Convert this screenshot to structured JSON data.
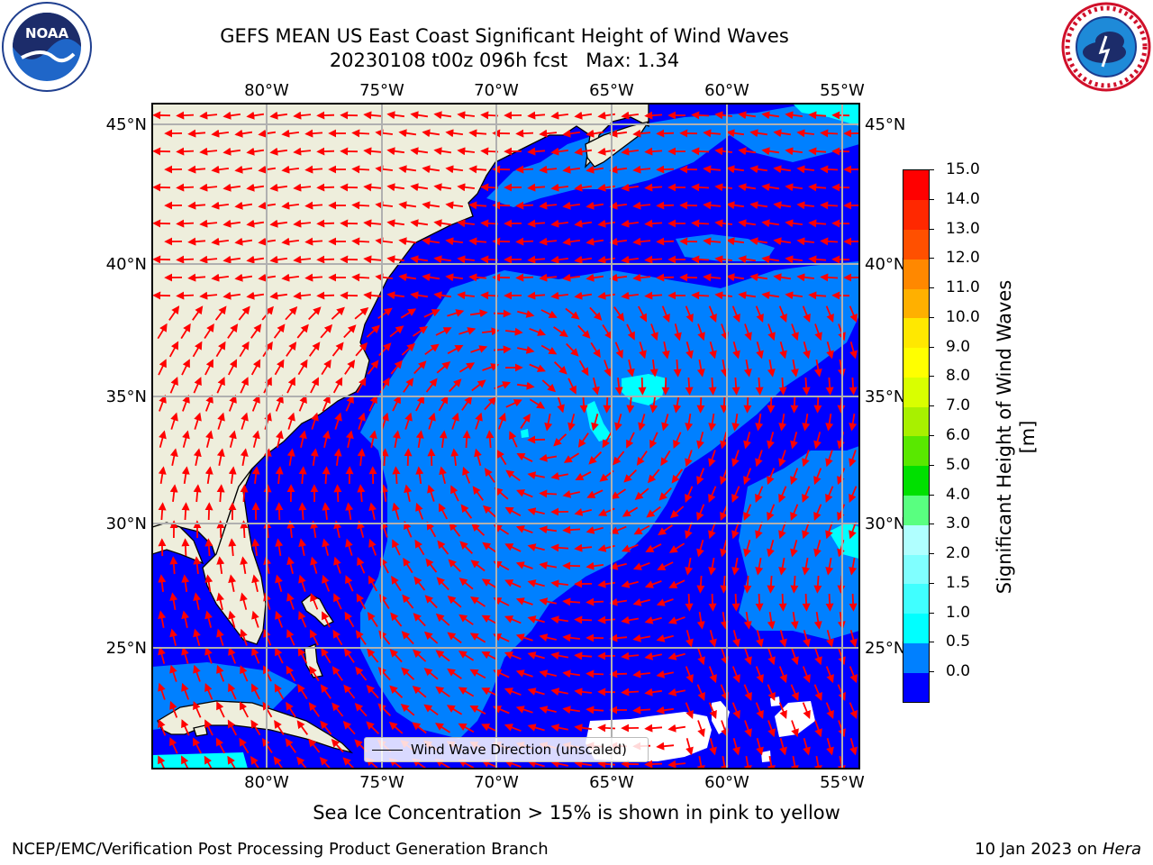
{
  "header": {
    "title_line1": "GEFS MEAN US East Coast Significant Height of Wind Waves",
    "title_line2": "20230108 t00z 096h fcst   Max: 1.34"
  },
  "logos": {
    "left": "noaa-logo",
    "left_text": "NOAA",
    "right": "nws-logo"
  },
  "map": {
    "lon_labels": [
      "80°W",
      "75°W",
      "70°W",
      "65°W",
      "60°W",
      "55°W"
    ],
    "lat_labels": [
      "45°N",
      "40°N",
      "35°N",
      "30°N",
      "25°N"
    ],
    "land_color": "#eeeedc",
    "ocean_colors": {
      "0-0.5": "#0000ff",
      "0.5-1.0": "#0080ff",
      "1.0-1.5": "#00ffff",
      "ice_free_missing": "#ffffff"
    },
    "arrow_color": "#ff0000"
  },
  "legend": {
    "label": "Wind Wave Direction (unscaled)"
  },
  "colorbar": {
    "label": "Significant Height of Wind Waves [m]",
    "ticks": [
      "15.0",
      "14.0",
      "13.0",
      "12.0",
      "11.0",
      "10.0",
      "9.0",
      "8.0",
      "7.0",
      "6.0",
      "5.0",
      "4.0",
      "3.0",
      "2.0",
      "1.5",
      "1.0",
      "0.5",
      "0.0"
    ],
    "colors_bottom_to_top": [
      "#0000ff",
      "#0080ff",
      "#00ffff",
      "#40ffff",
      "#80ffff",
      "#b0ffff",
      "#59ff80",
      "#00e000",
      "#59e800",
      "#a8f000",
      "#d9ff00",
      "#ffff00",
      "#ffe800",
      "#ffb000",
      "#ff8800",
      "#ff5000",
      "#ff2800",
      "#ff0000"
    ]
  },
  "footer": {
    "note": "Sea Ice Concentration > 15% is shown in pink to yellow",
    "credit": "NCEP/EMC/Verification Post Processing Product Generation Branch",
    "date": "10 Jan 2023 on ",
    "machine": "Hera"
  }
}
